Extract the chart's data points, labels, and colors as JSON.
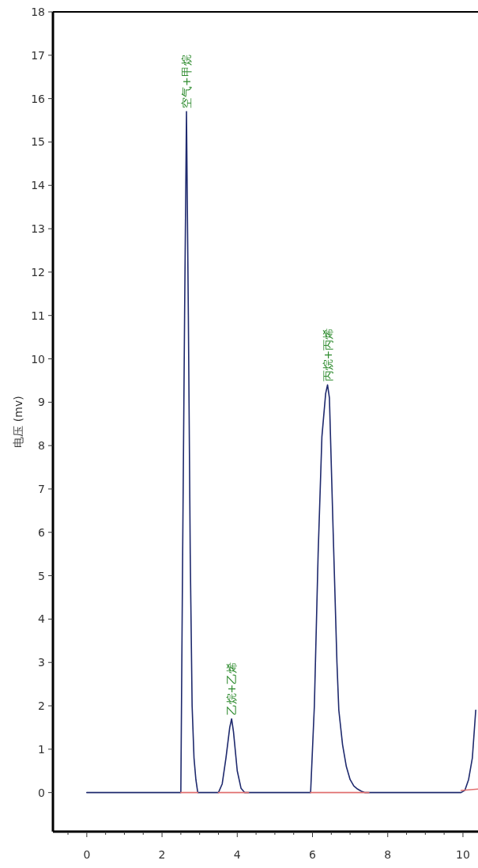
{
  "chart_data": {
    "type": "line",
    "ylabel": "电压 (mv)",
    "xlim": [
      -0.9,
      10.4
    ],
    "ylim": [
      -0.9,
      18
    ],
    "xticks": [
      0,
      2,
      4,
      6,
      8,
      10,
      {
        "value": -0.5,
        "label": null
      },
      {
        "value": 0.5,
        "label": null
      },
      {
        "value": 1,
        "label": null
      },
      {
        "value": 1.5,
        "label": null
      },
      {
        "value": 2.5,
        "label": null
      },
      {
        "value": 3,
        "label": null
      },
      {
        "value": 3.5,
        "label": null
      },
      {
        "value": 4.5,
        "label": null
      },
      {
        "value": 5,
        "label": null
      },
      {
        "value": 5.5,
        "label": null
      },
      {
        "value": 6.5,
        "label": null
      },
      {
        "value": 7,
        "label": null
      },
      {
        "value": 7.5,
        "label": null
      },
      {
        "value": 8.5,
        "label": null
      },
      {
        "value": 9,
        "label": null
      },
      {
        "value": 9.5,
        "label": null
      }
    ],
    "yticks": [
      0,
      1,
      2,
      3,
      4,
      5,
      6,
      7,
      8,
      9,
      10,
      11,
      12,
      13,
      14,
      15,
      16,
      17,
      18
    ],
    "grid": false,
    "marker": "none",
    "line_style": "solid",
    "series": [
      {
        "color": "#1f2a6e",
        "x": [
          0,
          2.5,
          2.55,
          2.6,
          2.65,
          2.7,
          2.75,
          2.8,
          2.85,
          2.9,
          2.95,
          3.5,
          3.6,
          3.7,
          3.8,
          3.85,
          3.9,
          4.0,
          4.1,
          4.2,
          5.95,
          6.05,
          6.15,
          6.25,
          6.35,
          6.4,
          6.45,
          6.55,
          6.65,
          6.7,
          6.8,
          6.9,
          7.0,
          7.1,
          7.2,
          7.3,
          7.4,
          9.95,
          10.05,
          10.15,
          10.25,
          10.34
        ],
        "values": [
          0,
          0,
          5.7,
          11,
          15.7,
          11,
          5.5,
          2,
          0.8,
          0.3,
          0,
          0,
          0.2,
          0.8,
          1.5,
          1.7,
          1.4,
          0.5,
          0.1,
          0,
          0,
          2,
          5.5,
          8.2,
          9.2,
          9.4,
          9.1,
          6,
          3,
          1.9,
          1.1,
          0.6,
          0.3,
          0.15,
          0.08,
          0.03,
          0,
          0,
          0.05,
          0.3,
          0.8,
          1.9
        ]
      },
      {
        "color": "#e07070",
        "x": [
          2.5,
          2.95
        ],
        "values": [
          0,
          0
        ]
      },
      {
        "color": "#e07070",
        "x": [
          3.5,
          4.3
        ],
        "values": [
          0,
          0
        ]
      },
      {
        "color": "#e07070",
        "x": [
          5.95,
          7.5
        ],
        "values": [
          0,
          0
        ]
      },
      {
        "color": "#e07070",
        "x": [
          9.95,
          10.4
        ],
        "values": [
          0.05,
          0.08
        ]
      }
    ],
    "annotations": [
      {
        "text": "空气+甲烷",
        "x": 2.65,
        "y": 15.7
      },
      {
        "text": "乙烷+乙烯",
        "x": 3.85,
        "y": 1.7
      },
      {
        "text": "丙烷+丙烯",
        "x": 6.4,
        "y": 9.4
      }
    ]
  }
}
